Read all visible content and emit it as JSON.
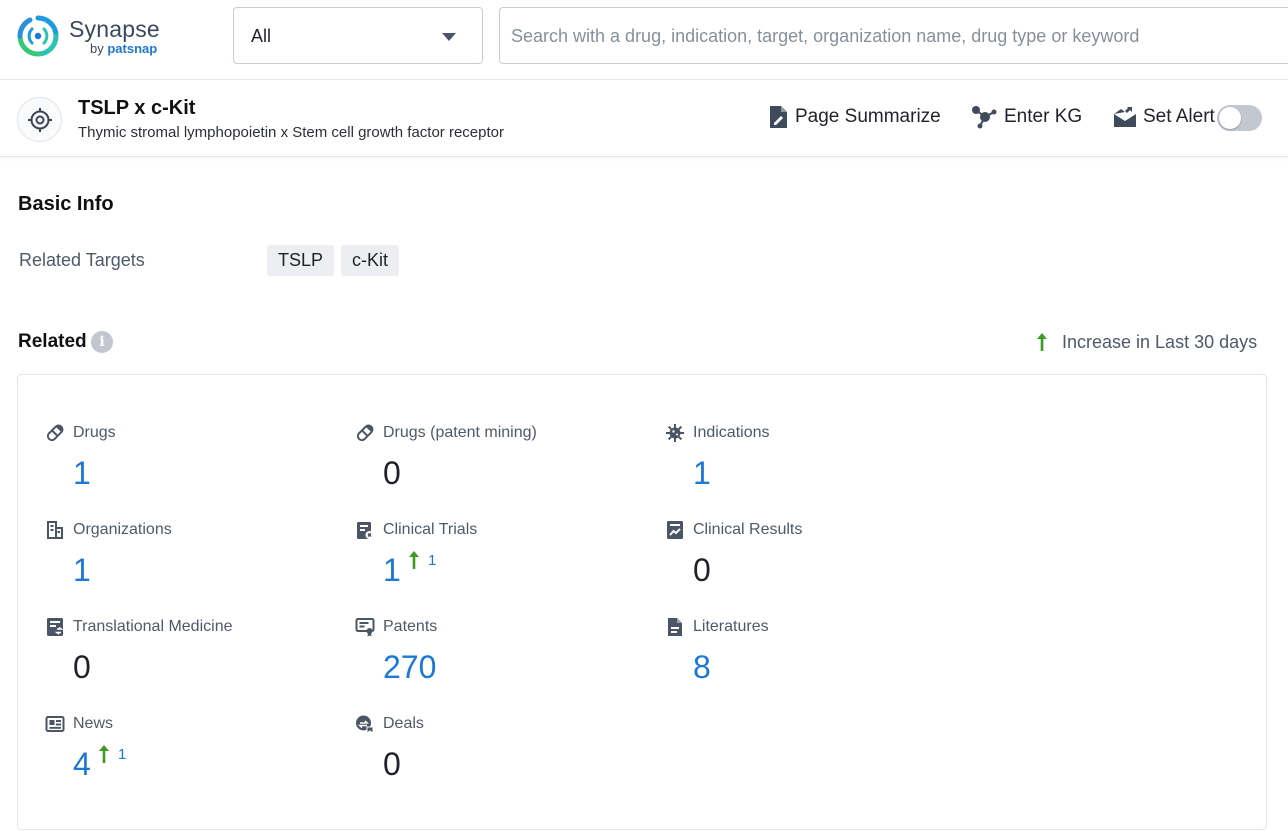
{
  "app": {
    "name": "Synapse",
    "by_prefix": "by",
    "by_brand": "patsnap"
  },
  "search": {
    "scope": "All",
    "placeholder": "Search with a drug, indication, target, organization name, drug type or keyword",
    "value": ""
  },
  "header": {
    "title": "TSLP x c-Kit",
    "subtitle": "Thymic stromal lymphopoietin x Stem cell growth factor receptor",
    "actions": {
      "summarize": "Page Summarize",
      "kg": "Enter KG",
      "alert": "Set Alert"
    },
    "alert_enabled": false
  },
  "basic_info": {
    "heading": "Basic Info",
    "related_targets_label": "Related Targets",
    "targets": [
      "TSLP",
      "c-Kit"
    ]
  },
  "related": {
    "heading": "Related",
    "legend": "Increase in Last 30 days",
    "colors": {
      "link": "#1c78d4",
      "increase": "#3f9a22",
      "icon": "#4a5565"
    },
    "stats": [
      {
        "label": "Drugs",
        "value": "1",
        "icon": "pill-icon",
        "linked": true,
        "increase": ""
      },
      {
        "label": "Drugs (patent mining)",
        "value": "0",
        "icon": "pill-icon",
        "linked": false,
        "increase": ""
      },
      {
        "label": "Indications",
        "value": "1",
        "icon": "virus-icon",
        "linked": true,
        "increase": ""
      },
      {
        "label": "Organizations",
        "value": "1",
        "icon": "building-icon",
        "linked": true,
        "increase": ""
      },
      {
        "label": "Clinical Trials",
        "value": "1",
        "icon": "clipboard-icon",
        "linked": true,
        "increase": "1"
      },
      {
        "label": "Clinical Results",
        "value": "0",
        "icon": "chart-doc-icon",
        "linked": false,
        "increase": ""
      },
      {
        "label": "Translational Medicine",
        "value": "0",
        "icon": "doc-exchange-icon",
        "linked": false,
        "increase": ""
      },
      {
        "label": "Patents",
        "value": "270",
        "icon": "certificate-icon",
        "linked": true,
        "increase": ""
      },
      {
        "label": "Literatures",
        "value": "8",
        "icon": "document-icon",
        "linked": true,
        "increase": ""
      },
      {
        "label": "News",
        "value": "4",
        "icon": "newspaper-icon",
        "linked": true,
        "increase": "1"
      },
      {
        "label": "Deals",
        "value": "0",
        "icon": "handshake-icon",
        "linked": false,
        "increase": ""
      }
    ]
  }
}
